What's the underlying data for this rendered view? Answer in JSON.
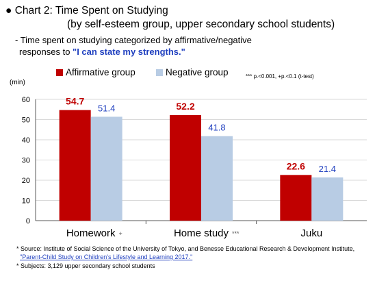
{
  "heading": {
    "bullet": "●",
    "line1": "Chart 2: Time Spent on Studying",
    "line2": "(by self-esteem group, upper secondary school students)"
  },
  "subtitle": {
    "line1": "- Time spent on studying categorized by affirmative/negative",
    "line2_prefix": "responses to ",
    "quote": "\"I can state my strengths.\""
  },
  "footnotes": {
    "source_prefix": "* Source: Institute of Social Science of the University of Tokyo, and Benesse Educational Research & Development Institute,",
    "source_link": "\"Parent-Child Study on Children's Lifestyle and Learning 2017.\"",
    "subjects": "* Subjects: 3,129 upper secondary school students"
  },
  "chart_data": {
    "type": "bar",
    "unit_label": "(min)",
    "significance_note": "*** p.<0.001,  +p.<0.1 (t-test)",
    "categories": [
      "Homework",
      "Home study",
      "Juku"
    ],
    "category_marks": [
      "+",
      "***",
      ""
    ],
    "series": [
      {
        "name": "Affirmative group",
        "values": [
          54.7,
          52.2,
          22.6
        ],
        "color": "#c00000",
        "label_color": "#c00000"
      },
      {
        "name": "Negative group",
        "values": [
          51.4,
          41.8,
          21.4
        ],
        "color": "#b8cce4",
        "label_color": "#1f3fbf"
      }
    ],
    "ylim": [
      0,
      60
    ],
    "yticks": [
      0,
      10,
      20,
      30,
      40,
      50,
      60
    ],
    "grid": true,
    "legend_position": "top"
  }
}
